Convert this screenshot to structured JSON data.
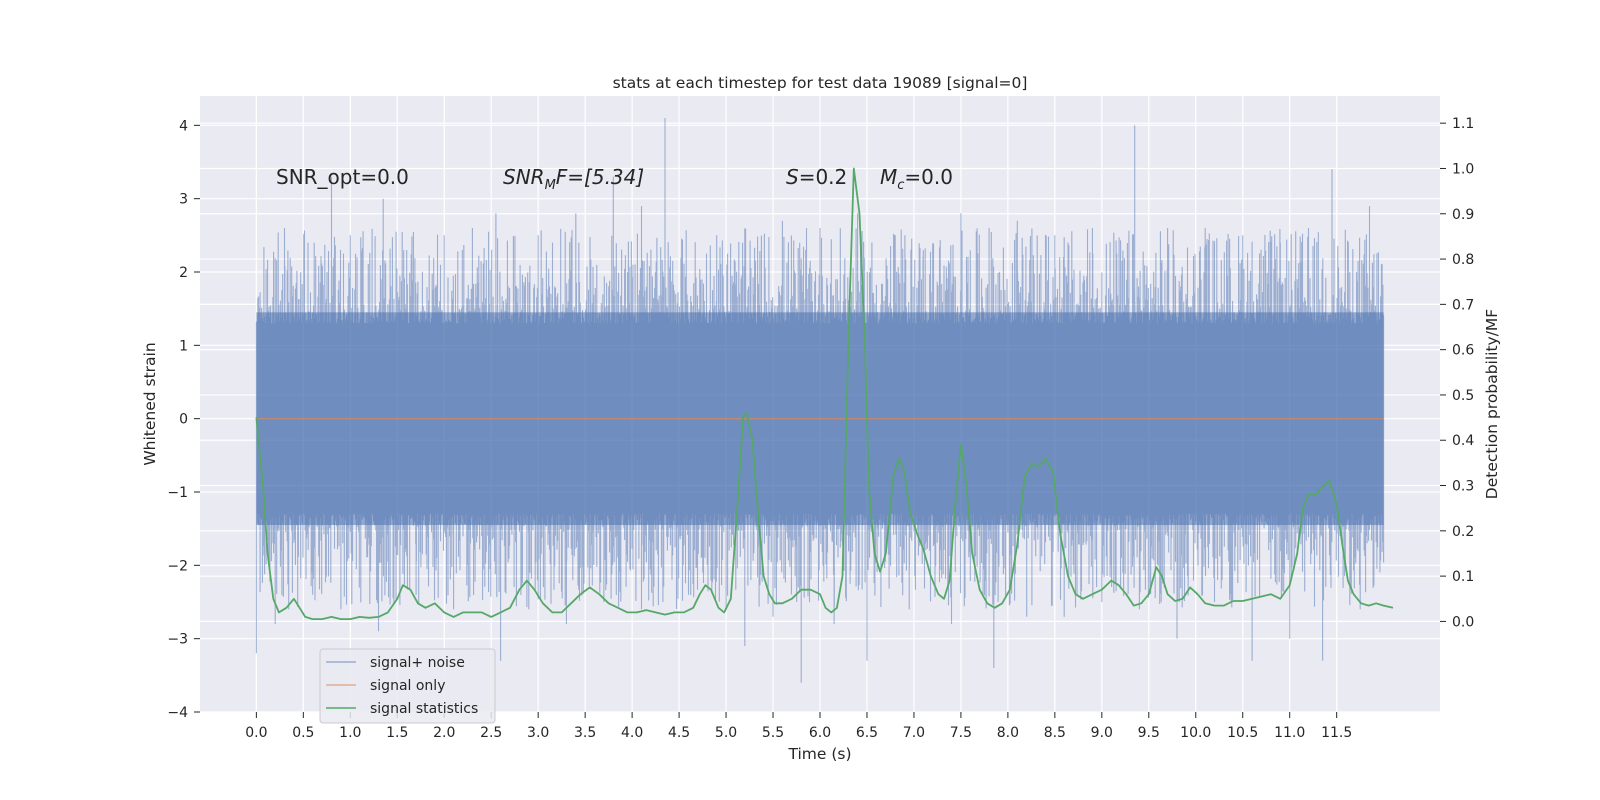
{
  "chart_data": {
    "type": "line",
    "title": "stats at each timestep for test data 19089 [signal=0]",
    "xlabel": "Time (s)",
    "ylabel_left": "Whitened strain",
    "ylabel_right": "Detection probability/MF",
    "xlim": [
      -0.6,
      12.6
    ],
    "ylim_left": [
      -4.0,
      4.4
    ],
    "ylim_right": [
      -0.2,
      1.16
    ],
    "x_ticks": [
      "0.0",
      "0.5",
      "1.0",
      "1.5",
      "2.0",
      "2.5",
      "3.0",
      "3.5",
      "4.0",
      "4.5",
      "5.0",
      "5.5",
      "6.0",
      "6.5",
      "7.0",
      "7.5",
      "8.0",
      "8.5",
      "9.0",
      "9.5",
      "10.0",
      "10.5",
      "11.0",
      "11.5"
    ],
    "y_ticks_left": [
      "4",
      "3",
      "2",
      "1",
      "0",
      "−1",
      "−2",
      "−3",
      "−4"
    ],
    "y_ticks_right": [
      "1.1",
      "1.0",
      "0.9",
      "0.8",
      "0.7",
      "0.6",
      "0.5",
      "0.4",
      "0.3",
      "0.2",
      "0.1",
      "0.0"
    ],
    "grid": true,
    "legend_position": "lower-left",
    "annotations": {
      "snr_opt": "SNR_opt=0.0",
      "snr_mf_main": "SNR",
      "snr_mf_sub": "M",
      "snr_mf_rest": "F=[5.34]",
      "s_main": "S",
      "s_rest": "=0.2",
      "mc_main": "M",
      "mc_sub": "c",
      "mc_rest": "=0.0"
    },
    "series": [
      {
        "name": "signal+ noise",
        "color": "#4c72b0",
        "axis": "left",
        "x_range": [
          0.0,
          12.0
        ],
        "body_band": [
          -1.45,
          1.45
        ],
        "peaks_up": [
          [
            0.3,
            2.6
          ],
          [
            0.55,
            2.4
          ],
          [
            0.8,
            3.3
          ],
          [
            1.0,
            2.5
          ],
          [
            1.35,
            3.0
          ],
          [
            1.6,
            2.3
          ],
          [
            2.0,
            2.5
          ],
          [
            2.3,
            2.6
          ],
          [
            2.55,
            2.8
          ],
          [
            3.0,
            2.5
          ],
          [
            3.4,
            2.8
          ],
          [
            3.8,
            3.3
          ],
          [
            4.1,
            2.9
          ],
          [
            4.35,
            4.1
          ],
          [
            4.9,
            2.5
          ],
          [
            5.2,
            2.3
          ],
          [
            5.6,
            2.7
          ],
          [
            6.0,
            2.6
          ],
          [
            6.4,
            2.8
          ],
          [
            6.8,
            2.5
          ],
          [
            7.1,
            2.3
          ],
          [
            7.5,
            2.8
          ],
          [
            7.8,
            2.6
          ],
          [
            8.1,
            2.7
          ],
          [
            8.5,
            2.5
          ],
          [
            8.9,
            2.6
          ],
          [
            9.35,
            4.0
          ],
          [
            9.7,
            2.6
          ],
          [
            10.1,
            2.6
          ],
          [
            10.5,
            2.5
          ],
          [
            10.9,
            2.4
          ],
          [
            11.2,
            2.6
          ],
          [
            11.45,
            3.4
          ],
          [
            11.85,
            2.9
          ]
        ],
        "peaks_down": [
          [
            0.0,
            -3.2
          ],
          [
            0.2,
            -2.8
          ],
          [
            0.6,
            -2.4
          ],
          [
            0.9,
            -2.6
          ],
          [
            1.3,
            -2.9
          ],
          [
            1.7,
            -2.4
          ],
          [
            2.1,
            -2.6
          ],
          [
            2.6,
            -3.3
          ],
          [
            2.9,
            -2.6
          ],
          [
            3.3,
            -2.8
          ],
          [
            3.7,
            -2.5
          ],
          [
            4.1,
            -2.6
          ],
          [
            4.6,
            -2.4
          ],
          [
            5.0,
            -2.6
          ],
          [
            5.2,
            -3.1
          ],
          [
            5.5,
            -2.7
          ],
          [
            5.8,
            -3.6
          ],
          [
            6.15,
            -2.8
          ],
          [
            6.5,
            -3.3
          ],
          [
            6.95,
            -2.6
          ],
          [
            7.4,
            -2.8
          ],
          [
            7.85,
            -3.4
          ],
          [
            8.2,
            -2.7
          ],
          [
            8.6,
            -2.7
          ],
          [
            9.0,
            -2.5
          ],
          [
            9.4,
            -2.6
          ],
          [
            9.8,
            -3.0
          ],
          [
            10.2,
            -2.5
          ],
          [
            10.6,
            -3.3
          ],
          [
            11.0,
            -3.0
          ],
          [
            11.35,
            -3.3
          ],
          [
            11.75,
            -2.6
          ]
        ]
      },
      {
        "name": "signal only",
        "color": "#dd8452",
        "axis": "left",
        "x": [
          0.0,
          12.0
        ],
        "y": [
          0.0,
          0.0
        ]
      },
      {
        "name": "signal statistics",
        "color": "#55a868",
        "axis": "right",
        "points": [
          [
            0.0,
            0.45
          ],
          [
            0.07,
            0.3
          ],
          [
            0.12,
            0.15
          ],
          [
            0.18,
            0.05
          ],
          [
            0.24,
            0.02
          ],
          [
            0.32,
            0.03
          ],
          [
            0.4,
            0.05
          ],
          [
            0.46,
            0.03
          ],
          [
            0.52,
            0.01
          ],
          [
            0.6,
            0.005
          ],
          [
            0.7,
            0.005
          ],
          [
            0.8,
            0.01
          ],
          [
            0.9,
            0.005
          ],
          [
            1.0,
            0.005
          ],
          [
            1.1,
            0.01
          ],
          [
            1.2,
            0.008
          ],
          [
            1.3,
            0.01
          ],
          [
            1.4,
            0.02
          ],
          [
            1.5,
            0.05
          ],
          [
            1.56,
            0.08
          ],
          [
            1.64,
            0.07
          ],
          [
            1.72,
            0.04
          ],
          [
            1.8,
            0.03
          ],
          [
            1.9,
            0.04
          ],
          [
            2.0,
            0.02
          ],
          [
            2.1,
            0.01
          ],
          [
            2.2,
            0.02
          ],
          [
            2.3,
            0.02
          ],
          [
            2.4,
            0.02
          ],
          [
            2.5,
            0.01
          ],
          [
            2.6,
            0.02
          ],
          [
            2.7,
            0.03
          ],
          [
            2.8,
            0.07
          ],
          [
            2.88,
            0.09
          ],
          [
            2.96,
            0.07
          ],
          [
            3.05,
            0.04
          ],
          [
            3.15,
            0.02
          ],
          [
            3.25,
            0.02
          ],
          [
            3.35,
            0.04
          ],
          [
            3.45,
            0.06
          ],
          [
            3.55,
            0.075
          ],
          [
            3.65,
            0.06
          ],
          [
            3.75,
            0.04
          ],
          [
            3.85,
            0.03
          ],
          [
            3.95,
            0.02
          ],
          [
            4.05,
            0.02
          ],
          [
            4.15,
            0.025
          ],
          [
            4.25,
            0.02
          ],
          [
            4.35,
            0.015
          ],
          [
            4.45,
            0.02
          ],
          [
            4.55,
            0.02
          ],
          [
            4.65,
            0.03
          ],
          [
            4.72,
            0.06
          ],
          [
            4.78,
            0.08
          ],
          [
            4.84,
            0.07
          ],
          [
            4.92,
            0.03
          ],
          [
            4.98,
            0.02
          ],
          [
            5.05,
            0.05
          ],
          [
            5.12,
            0.25
          ],
          [
            5.18,
            0.45
          ],
          [
            5.22,
            0.46
          ],
          [
            5.28,
            0.4
          ],
          [
            5.34,
            0.24
          ],
          [
            5.4,
            0.1
          ],
          [
            5.46,
            0.06
          ],
          [
            5.52,
            0.04
          ],
          [
            5.6,
            0.04
          ],
          [
            5.7,
            0.05
          ],
          [
            5.8,
            0.07
          ],
          [
            5.9,
            0.07
          ],
          [
            6.0,
            0.06
          ],
          [
            6.06,
            0.03
          ],
          [
            6.12,
            0.02
          ],
          [
            6.18,
            0.03
          ],
          [
            6.24,
            0.1
          ],
          [
            6.3,
            0.6
          ],
          [
            6.36,
            1.0
          ],
          [
            6.42,
            0.9
          ],
          [
            6.48,
            0.6
          ],
          [
            6.52,
            0.3
          ],
          [
            6.58,
            0.15
          ],
          [
            6.64,
            0.11
          ],
          [
            6.7,
            0.15
          ],
          [
            6.78,
            0.32
          ],
          [
            6.84,
            0.36
          ],
          [
            6.9,
            0.33
          ],
          [
            6.96,
            0.24
          ],
          [
            7.04,
            0.19
          ],
          [
            7.1,
            0.16
          ],
          [
            7.18,
            0.1
          ],
          [
            7.26,
            0.06
          ],
          [
            7.32,
            0.05
          ],
          [
            7.38,
            0.09
          ],
          [
            7.44,
            0.26
          ],
          [
            7.5,
            0.39
          ],
          [
            7.56,
            0.3
          ],
          [
            7.62,
            0.15
          ],
          [
            7.7,
            0.07
          ],
          [
            7.78,
            0.04
          ],
          [
            7.86,
            0.03
          ],
          [
            7.94,
            0.04
          ],
          [
            8.02,
            0.07
          ],
          [
            8.1,
            0.17
          ],
          [
            8.18,
            0.32
          ],
          [
            8.26,
            0.35
          ],
          [
            8.32,
            0.34
          ],
          [
            8.4,
            0.36
          ],
          [
            8.48,
            0.33
          ],
          [
            8.56,
            0.19
          ],
          [
            8.64,
            0.1
          ],
          [
            8.72,
            0.06
          ],
          [
            8.8,
            0.05
          ],
          [
            8.9,
            0.06
          ],
          [
            9.0,
            0.07
          ],
          [
            9.1,
            0.09
          ],
          [
            9.18,
            0.08
          ],
          [
            9.26,
            0.06
          ],
          [
            9.34,
            0.035
          ],
          [
            9.42,
            0.04
          ],
          [
            9.5,
            0.06
          ],
          [
            9.58,
            0.12
          ],
          [
            9.64,
            0.1
          ],
          [
            9.7,
            0.06
          ],
          [
            9.78,
            0.045
          ],
          [
            9.86,
            0.05
          ],
          [
            9.94,
            0.075
          ],
          [
            10.02,
            0.06
          ],
          [
            10.1,
            0.04
          ],
          [
            10.2,
            0.035
          ],
          [
            10.3,
            0.035
          ],
          [
            10.4,
            0.045
          ],
          [
            10.5,
            0.045
          ],
          [
            10.6,
            0.05
          ],
          [
            10.7,
            0.055
          ],
          [
            10.8,
            0.06
          ],
          [
            10.9,
            0.05
          ],
          [
            11.0,
            0.08
          ],
          [
            11.08,
            0.15
          ],
          [
            11.14,
            0.25
          ],
          [
            11.2,
            0.28
          ],
          [
            11.28,
            0.28
          ],
          [
            11.36,
            0.3
          ],
          [
            11.42,
            0.31
          ],
          [
            11.5,
            0.26
          ],
          [
            11.56,
            0.17
          ],
          [
            11.62,
            0.09
          ],
          [
            11.68,
            0.06
          ],
          [
            11.76,
            0.04
          ],
          [
            11.84,
            0.035
          ],
          [
            11.92,
            0.04
          ],
          [
            12.0,
            0.035
          ],
          [
            12.1,
            0.03
          ]
        ]
      }
    ]
  }
}
